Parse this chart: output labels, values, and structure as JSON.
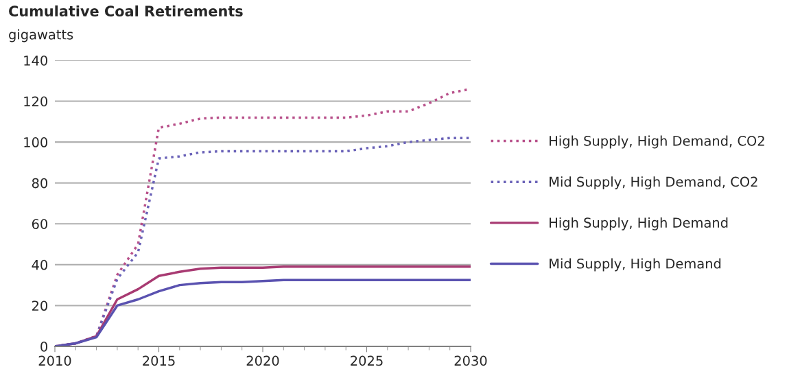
{
  "chart_data": {
    "type": "line",
    "title": "Cumulative Coal Retirements",
    "ylabel": "gigawatts",
    "x": [
      2010,
      2011,
      2012,
      2013,
      2014,
      2015,
      2016,
      2017,
      2018,
      2019,
      2020,
      2021,
      2022,
      2023,
      2024,
      2025,
      2026,
      2027,
      2028,
      2029,
      2030
    ],
    "series": [
      {
        "name": "High Supply, High Demand, CO2",
        "color": "#b8508a",
        "line_style": "dotted",
        "values": [
          0,
          1.5,
          5,
          35,
          50,
          107,
          109,
          111.5,
          112,
          112,
          112,
          112,
          112,
          112,
          112,
          113,
          115,
          115,
          119,
          124,
          126
        ]
      },
      {
        "name": "Mid Supply, High Demand, CO2",
        "color": "#6a62b8",
        "line_style": "dotted",
        "values": [
          0,
          1.5,
          5,
          33,
          46,
          92,
          93,
          95,
          95.5,
          95.5,
          95.5,
          95.5,
          95.5,
          95.5,
          95.5,
          97,
          98,
          100,
          101,
          102,
          102
        ]
      },
      {
        "name": "High Supply, High Demand",
        "color": "#a83a72",
        "line_style": "solid",
        "values": [
          0,
          1.5,
          5,
          23,
          28,
          34.5,
          36.5,
          38,
          38.5,
          38.5,
          38.5,
          39,
          39,
          39,
          39,
          39,
          39,
          39,
          39,
          39,
          39
        ]
      },
      {
        "name": "Mid Supply, High Demand",
        "color": "#5a52b0",
        "line_style": "solid",
        "values": [
          0,
          1.5,
          4.5,
          20,
          23,
          27,
          30,
          31,
          31.5,
          31.5,
          32,
          32.5,
          32.5,
          32.5,
          32.5,
          32.5,
          32.5,
          32.5,
          32.5,
          32.5,
          32.5
        ]
      }
    ],
    "xlim": [
      2010,
      2030
    ],
    "xticks": [
      2010,
      2015,
      2020,
      2025,
      2030
    ],
    "ylim": [
      0,
      140
    ],
    "yticks": [
      0,
      20,
      40,
      60,
      80,
      100,
      120,
      140
    ],
    "grid": "y",
    "legend": "right"
  }
}
